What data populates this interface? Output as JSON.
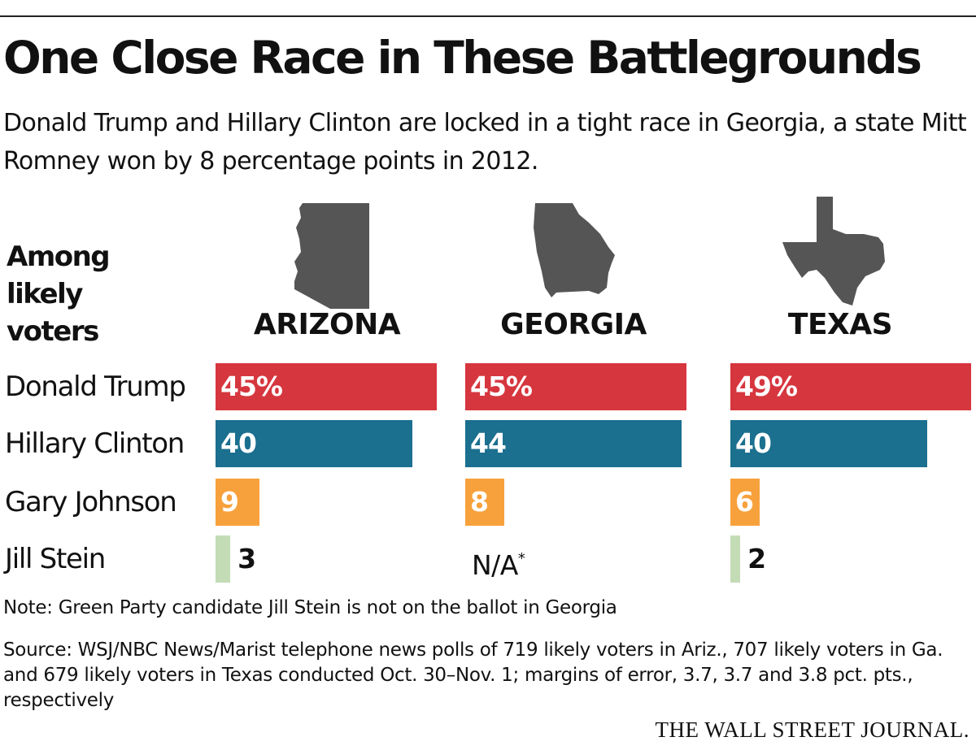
{
  "header": {
    "title": "One Close Race in These Battlegrounds",
    "subtitle": "Donald Trump and Hillary Clinton are locked in a tight race in Georgia, a state Mitt Romney won by 8 percentage points in 2012."
  },
  "row_header": "Among\nlikely\nvoters",
  "chart_data": {
    "type": "bar",
    "orientation": "horizontal",
    "title": "One Close Race in These Battlegrounds",
    "xlabel": "",
    "ylabel": "Among likely voters",
    "categories": [
      "Donald Trump",
      "Hillary Clinton",
      "Gary Johnson",
      "Jill Stein"
    ],
    "colors": [
      "#d6363e",
      "#1b6f8f",
      "#f7a13c",
      "#c3dcb6"
    ],
    "text_color_inside": "#ffffff",
    "series": [
      {
        "name": "ARIZONA",
        "values": [
          45,
          40,
          9,
          3
        ],
        "labels": [
          "45%",
          "40",
          "9",
          "3"
        ]
      },
      {
        "name": "GEORGIA",
        "values": [
          45,
          44,
          8,
          null
        ],
        "labels": [
          "45%",
          "44",
          "8",
          "N/A"
        ]
      },
      {
        "name": "TEXAS",
        "values": [
          49,
          40,
          6,
          2
        ],
        "labels": [
          "49%",
          "40",
          "6",
          "2"
        ]
      }
    ],
    "na_footnote_mark": "*",
    "icons": [
      "arizona-map-icon",
      "georgia-map-icon",
      "texas-map-icon"
    ]
  },
  "footer": {
    "note": "Note: Green Party candidate Jill Stein is not on the ballot in Georgia",
    "source": "Source: WSJ/NBC News/Marist telephone news polls of 719 likely voters in Ariz., 707 likely voters in Ga. and 679 likely voters in Texas conducted Oct. 30–Nov. 1; margins of error, 3.7, 3.7 and 3.8 pct. pts., respectively",
    "brand": "THE WALL STREET JOURNAL."
  }
}
